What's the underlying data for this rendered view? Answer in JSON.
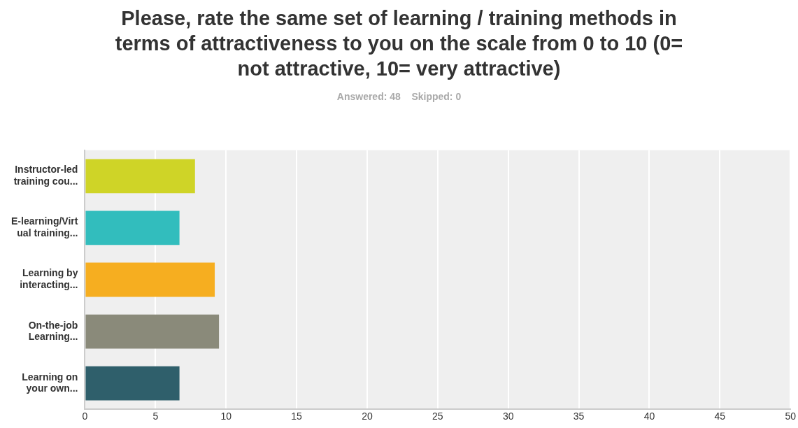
{
  "chart_data": {
    "type": "bar",
    "orientation": "horizontal",
    "title": "Please, rate the same set of learning / training methods in terms of attractiveness to you on the scale from 0 to 10 (0= not attractive, 10= very attractive)",
    "subtitle": "Answered: 48    Skipped: 0",
    "categories": [
      "Instructor-led training cou...",
      "E-learning/Virtual training...",
      "Learning by interacting...",
      "On-the-job Learning...",
      "Learning on your own..."
    ],
    "values": [
      7.8,
      6.7,
      9.2,
      9.5,
      6.7
    ],
    "colors": [
      "#cfd427",
      "#32bdbd",
      "#f6ae20",
      "#8a8a7a",
      "#2f5f6b"
    ],
    "xlim": [
      0,
      50
    ],
    "xticks": [
      0,
      5,
      10,
      15,
      20,
      25,
      30,
      35,
      40,
      45,
      50
    ],
    "grid": "x",
    "legend": false
  }
}
